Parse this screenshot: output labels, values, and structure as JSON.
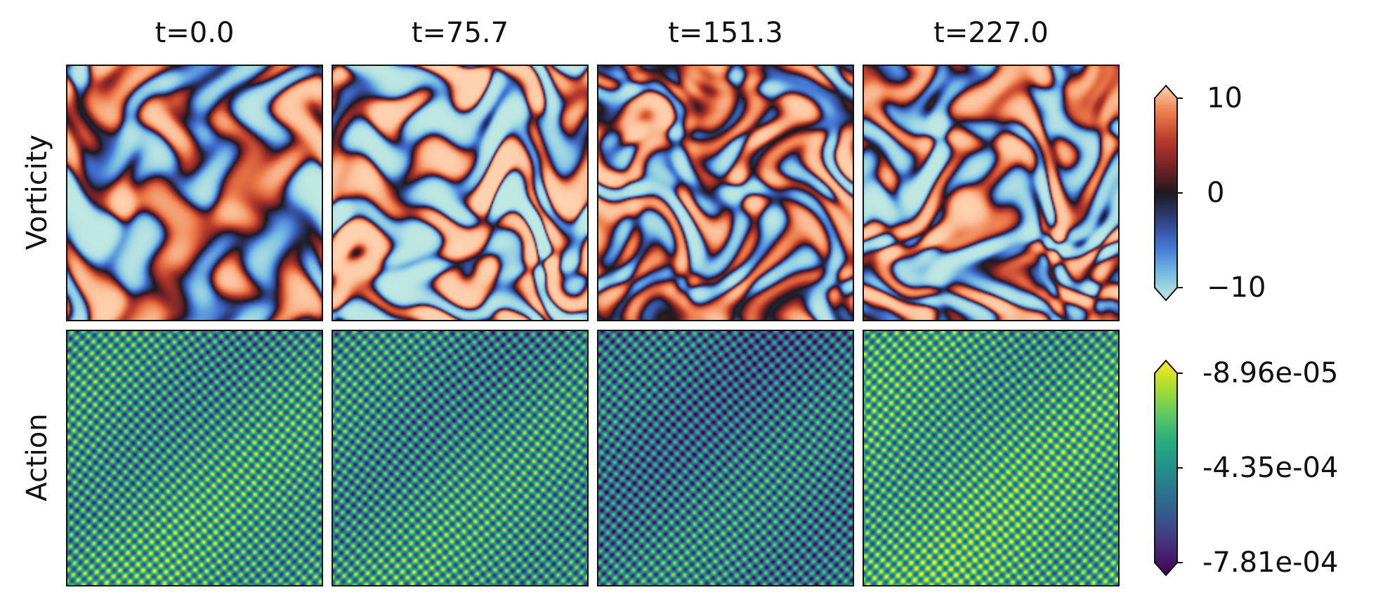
{
  "chart_data": {
    "type": "heatmap",
    "columns": [
      "t=0.0",
      "t=75.7",
      "t=151.3",
      "t=227.0"
    ],
    "rows": [
      {
        "label": "Vorticity",
        "colormap": "icefire",
        "colorbar": {
          "range": [
            -10,
            10
          ],
          "ticks": [
            10,
            0,
            -10
          ],
          "tick_labels": [
            "10",
            "0",
            "−10"
          ],
          "extend": "both"
        }
      },
      {
        "label": "Action",
        "colormap": "viridis",
        "colorbar": {
          "range": [
            -0.000781,
            -8.96e-05
          ],
          "ticks": [
            -8.96e-05,
            -0.000435,
            -0.000781
          ],
          "tick_labels": [
            "-8.96e-05",
            "-4.35e-04",
            "-7.81e-04"
          ],
          "extend": "both"
        }
      }
    ]
  }
}
